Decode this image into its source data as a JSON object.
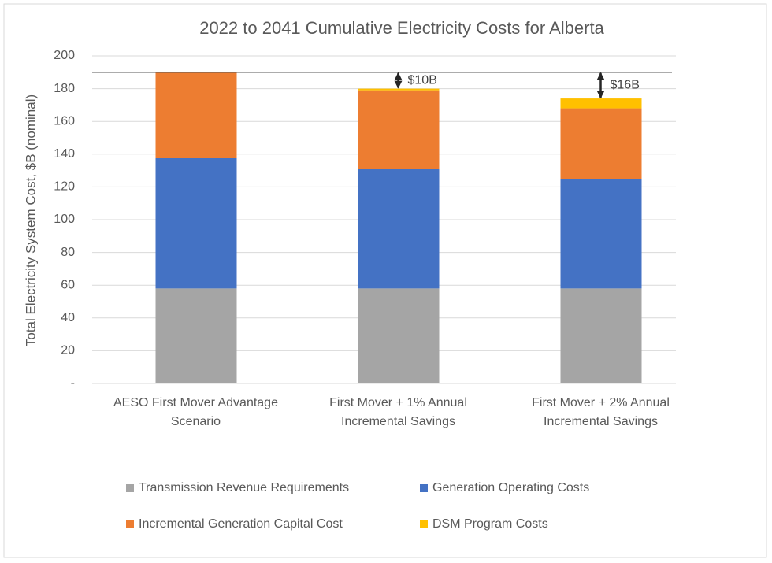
{
  "chart_data": {
    "type": "stacked_bar",
    "title": "2022 to 2041 Cumulative Electricity Costs for Alberta",
    "y_label": "Total Electricity System Cost, $B (nominal)",
    "categories": [
      [
        "AESO First Mover Advantage",
        "Scenario"
      ],
      [
        "First Mover + 1% Annual",
        "Incremental Savings"
      ],
      [
        "First Mover + 2% Annual",
        "Incremental Savings"
      ]
    ],
    "series": [
      {
        "name": "Transmission Revenue Requirements",
        "color": "#a5a5a5",
        "values": [
          58,
          58,
          58
        ]
      },
      {
        "name": "Generation Operating Costs",
        "color": "#4472c4",
        "values": [
          79.5,
          73,
          67
        ]
      },
      {
        "name": "Incremental Generation Capital Cost",
        "color": "#ed7d31",
        "values": [
          52.5,
          48,
          43
        ]
      },
      {
        "name": "DSM Program Costs",
        "color": "#ffc000",
        "values": [
          0,
          1,
          6
        ]
      }
    ],
    "reference_line": 190,
    "annotations": [
      null,
      {
        "text": "$10B",
        "from": 190,
        "to": 180
      },
      {
        "text": "$16B",
        "from": 190,
        "to": 174
      }
    ],
    "ylim": [
      0,
      200
    ],
    "yticks": [
      {
        "value": 0,
        "label": "-"
      },
      20,
      40,
      60,
      80,
      100,
      120,
      140,
      160,
      180,
      200
    ],
    "grid": true,
    "legend": "bottom"
  }
}
